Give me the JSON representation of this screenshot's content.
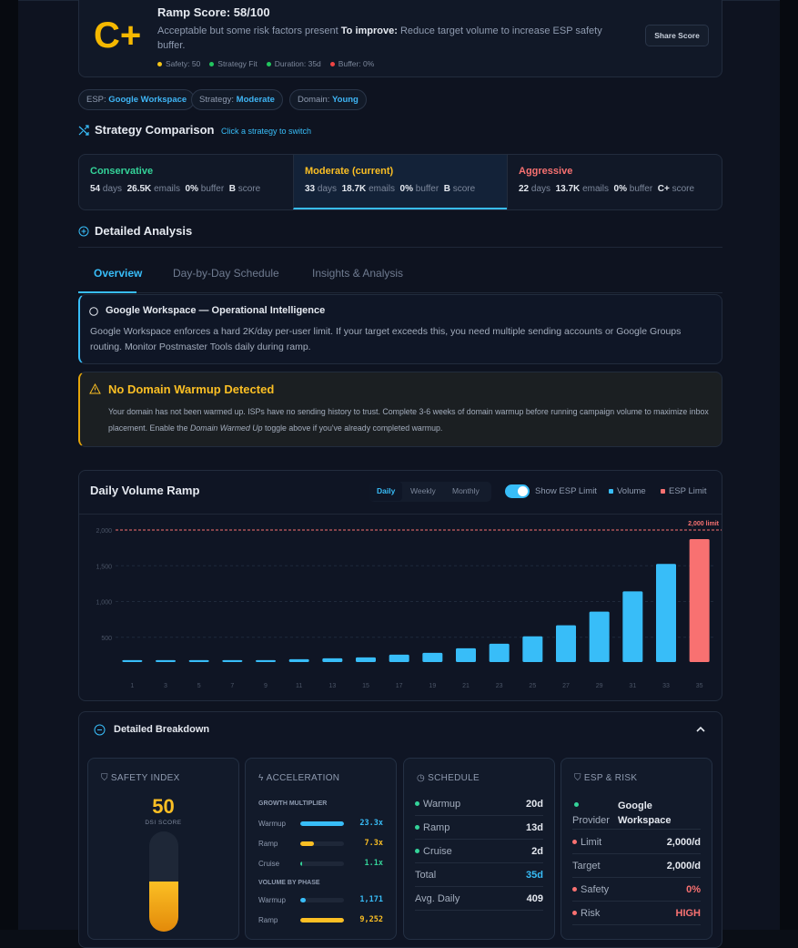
{
  "score": {
    "grade": "C+",
    "title": "Ramp Score: 58/100",
    "desc": "Acceptable but some risk factors present",
    "improve_label": "To improve:",
    "improve_text": "Reduce target volume to increase ESP safety buffer.",
    "share_button": "Share Score",
    "factors": [
      {
        "label": "Safety: 50",
        "color": "#f5c518"
      },
      {
        "label": "Strategy Fit",
        "color": "#22c55e"
      },
      {
        "label": "Duration: 35d",
        "color": "#22c55e"
      },
      {
        "label": "Buffer: 0%",
        "color": "#ef4444"
      }
    ]
  },
  "pills": [
    {
      "k": "ESP:",
      "v": "Google Workspace"
    },
    {
      "k": "Strategy:",
      "v": "Moderate"
    },
    {
      "k": "Domain:",
      "v": "Young"
    }
  ],
  "comparison": {
    "title": "Strategy Comparison",
    "hint": "Click a strategy to switch",
    "strategies": [
      {
        "name": "Conservative",
        "color": "#34d399",
        "days": "54",
        "emails": "26.5K",
        "buffer": "0%",
        "score": "B"
      },
      {
        "name": "Moderate (current)",
        "color": "#fbbf24",
        "days": "33",
        "emails": "18.7K",
        "buffer": "0%",
        "score": "B"
      },
      {
        "name": "Aggressive",
        "color": "#f87171",
        "days": "22",
        "emails": "13.7K",
        "buffer": "0%",
        "score": "C+"
      }
    ],
    "units": {
      "days": "days",
      "emails": "emails",
      "buffer": "buffer",
      "score": "score"
    }
  },
  "analysis": {
    "title": "Detailed Analysis",
    "tabs": [
      "Overview",
      "Day-by-Day Schedule",
      "Insights & Analysis"
    ],
    "active_tab": 0
  },
  "info": {
    "title": "Google Workspace — Operational Intelligence",
    "text": "Google Workspace enforces a hard 2K/day per-user limit. If your target exceeds this, you need multiple sending accounts or Google Groups routing. Monitor Postmaster Tools daily during ramp."
  },
  "warning": {
    "title": "No Domain Warmup Detected",
    "text1": "Your domain has not been warmed up. ISPs have no sending history to trust. Complete 3-6 weeks of domain warmup before running campaign volume to maximize inbox placement. Enable the",
    "em": "Domain Warmed Up",
    "text2": "toggle above if you've already completed warmup."
  },
  "chart_controls": {
    "views": [
      "Daily",
      "Weekly",
      "Monthly"
    ],
    "active_view": "Daily",
    "toggle_label": "Show ESP Limit",
    "toggle_on": true
  },
  "chart_data": {
    "type": "bar",
    "title": "Daily Volume Ramp",
    "categories": [
      "1",
      "3",
      "5",
      "7",
      "9",
      "11",
      "13",
      "15",
      "17",
      "19",
      "21",
      "23",
      "25",
      "27",
      "29",
      "31",
      "33",
      "35"
    ],
    "series": [
      {
        "name": "Volume",
        "color": "#38bdf8",
        "values": [
          180,
          180,
          180,
          180,
          180,
          192,
          205,
          218,
          256,
          282,
          346,
          410,
          513,
          667,
          859,
          1141,
          1526,
          1872
        ]
      }
    ],
    "highlight": {
      "category": "35",
      "color": "#f87171"
    },
    "legend": [
      {
        "label": "Volume",
        "color": "#38bdf8"
      },
      {
        "label": "ESP Limit",
        "color": "#f87171"
      }
    ],
    "yticks": [
      "500",
      "1,000",
      "1,500",
      "2,000"
    ],
    "ylim": [
      0,
      2000
    ],
    "limit": {
      "value": 2000,
      "label": "2,000 limit"
    },
    "grid": true,
    "legend_position": "top-right"
  },
  "breakdown": {
    "title": "Detailed Breakdown",
    "safety": {
      "title": "SAFETY INDEX",
      "value": "50",
      "label": "DSI SCORE",
      "fill": 0.5
    },
    "accel": {
      "title": "ACCELERATION",
      "growth_title": "GROWTH MULTIPLIER",
      "growth": [
        {
          "l": "Warmup",
          "v": "23.3x",
          "f": 1,
          "c": "#38bdf8"
        },
        {
          "l": "Ramp",
          "v": "7.3x",
          "f": 0.31,
          "c": "#fbbf24"
        },
        {
          "l": "Cruise",
          "v": "1.1x",
          "f": 0.05,
          "c": "#34d399"
        }
      ],
      "volume_title": "VOLUME BY PHASE",
      "volume": [
        {
          "l": "Warmup",
          "v": "1,171",
          "f": 0.13,
          "c": "#38bdf8"
        },
        {
          "l": "Ramp",
          "v": "9,252",
          "f": 1,
          "c": "#fbbf24"
        }
      ]
    },
    "schedule": {
      "title": "SCHEDULE",
      "rows": [
        {
          "l": "Warmup",
          "v": "20d",
          "dot": "#34d399"
        },
        {
          "l": "Ramp",
          "v": "13d",
          "dot": "#34d399"
        },
        {
          "l": "Cruise",
          "v": "2d",
          "dot": "#34d399"
        },
        {
          "l": "Total",
          "v": "35d",
          "vc": "#38bdf8"
        },
        {
          "l": "Avg. Daily",
          "v": "409"
        }
      ]
    },
    "esp": {
      "title": "ESP & RISK",
      "provider_label": "Provider",
      "provider": "Google Workspace",
      "rows": [
        {
          "l": "Limit",
          "v": "2,000/d",
          "dot": "#f87171"
        },
        {
          "l": "Target",
          "v": "2,000/d"
        },
        {
          "l": "Safety",
          "v": "0%",
          "dot": "#f87171",
          "vc": "#f87171"
        },
        {
          "l": "Risk",
          "v": "HIGH",
          "dot": "#f87171",
          "vc": "#f87171"
        }
      ]
    }
  }
}
